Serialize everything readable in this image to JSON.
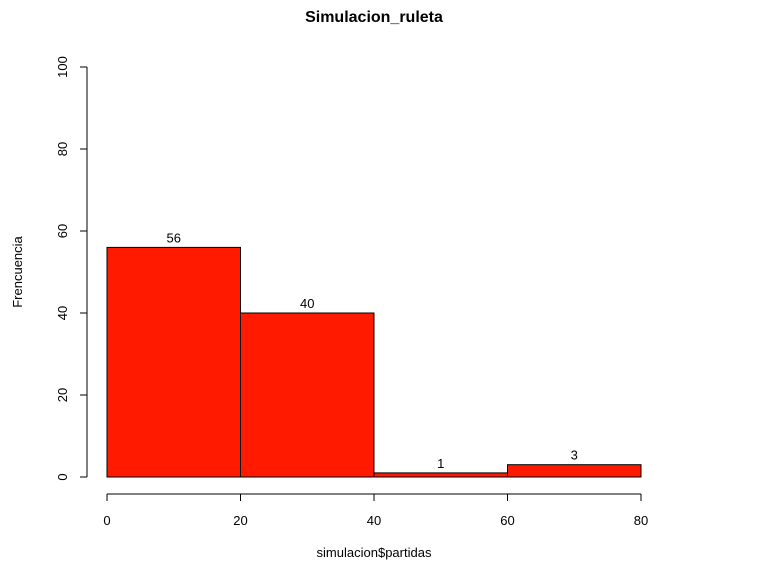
{
  "chart_data": {
    "type": "bar",
    "title": "Simulacion_ruleta",
    "xlabel": "simulacion$partidas",
    "ylabel": "Frencuencia",
    "bins": [
      {
        "from": 0,
        "to": 20,
        "count": 56,
        "label": "56"
      },
      {
        "from": 20,
        "to": 40,
        "count": 40,
        "label": "40"
      },
      {
        "from": 40,
        "to": 60,
        "count": 1,
        "label": "1"
      },
      {
        "from": 60,
        "to": 80,
        "count": 3,
        "label": "3"
      }
    ],
    "xlim": [
      0,
      80
    ],
    "ylim": [
      0,
      100
    ],
    "x_ticks": [
      {
        "value": 0,
        "label": "0"
      },
      {
        "value": 20,
        "label": "20"
      },
      {
        "value": 40,
        "label": "40"
      },
      {
        "value": 60,
        "label": "60"
      },
      {
        "value": 80,
        "label": "80"
      }
    ],
    "y_ticks": [
      {
        "value": 0,
        "label": "0"
      },
      {
        "value": 20,
        "label": "20"
      },
      {
        "value": 40,
        "label": "40"
      },
      {
        "value": 60,
        "label": "60"
      },
      {
        "value": 80,
        "label": "80"
      },
      {
        "value": 100,
        "label": "100"
      }
    ],
    "bar_color": "#ff1a00",
    "grid": false,
    "legend": "none"
  }
}
